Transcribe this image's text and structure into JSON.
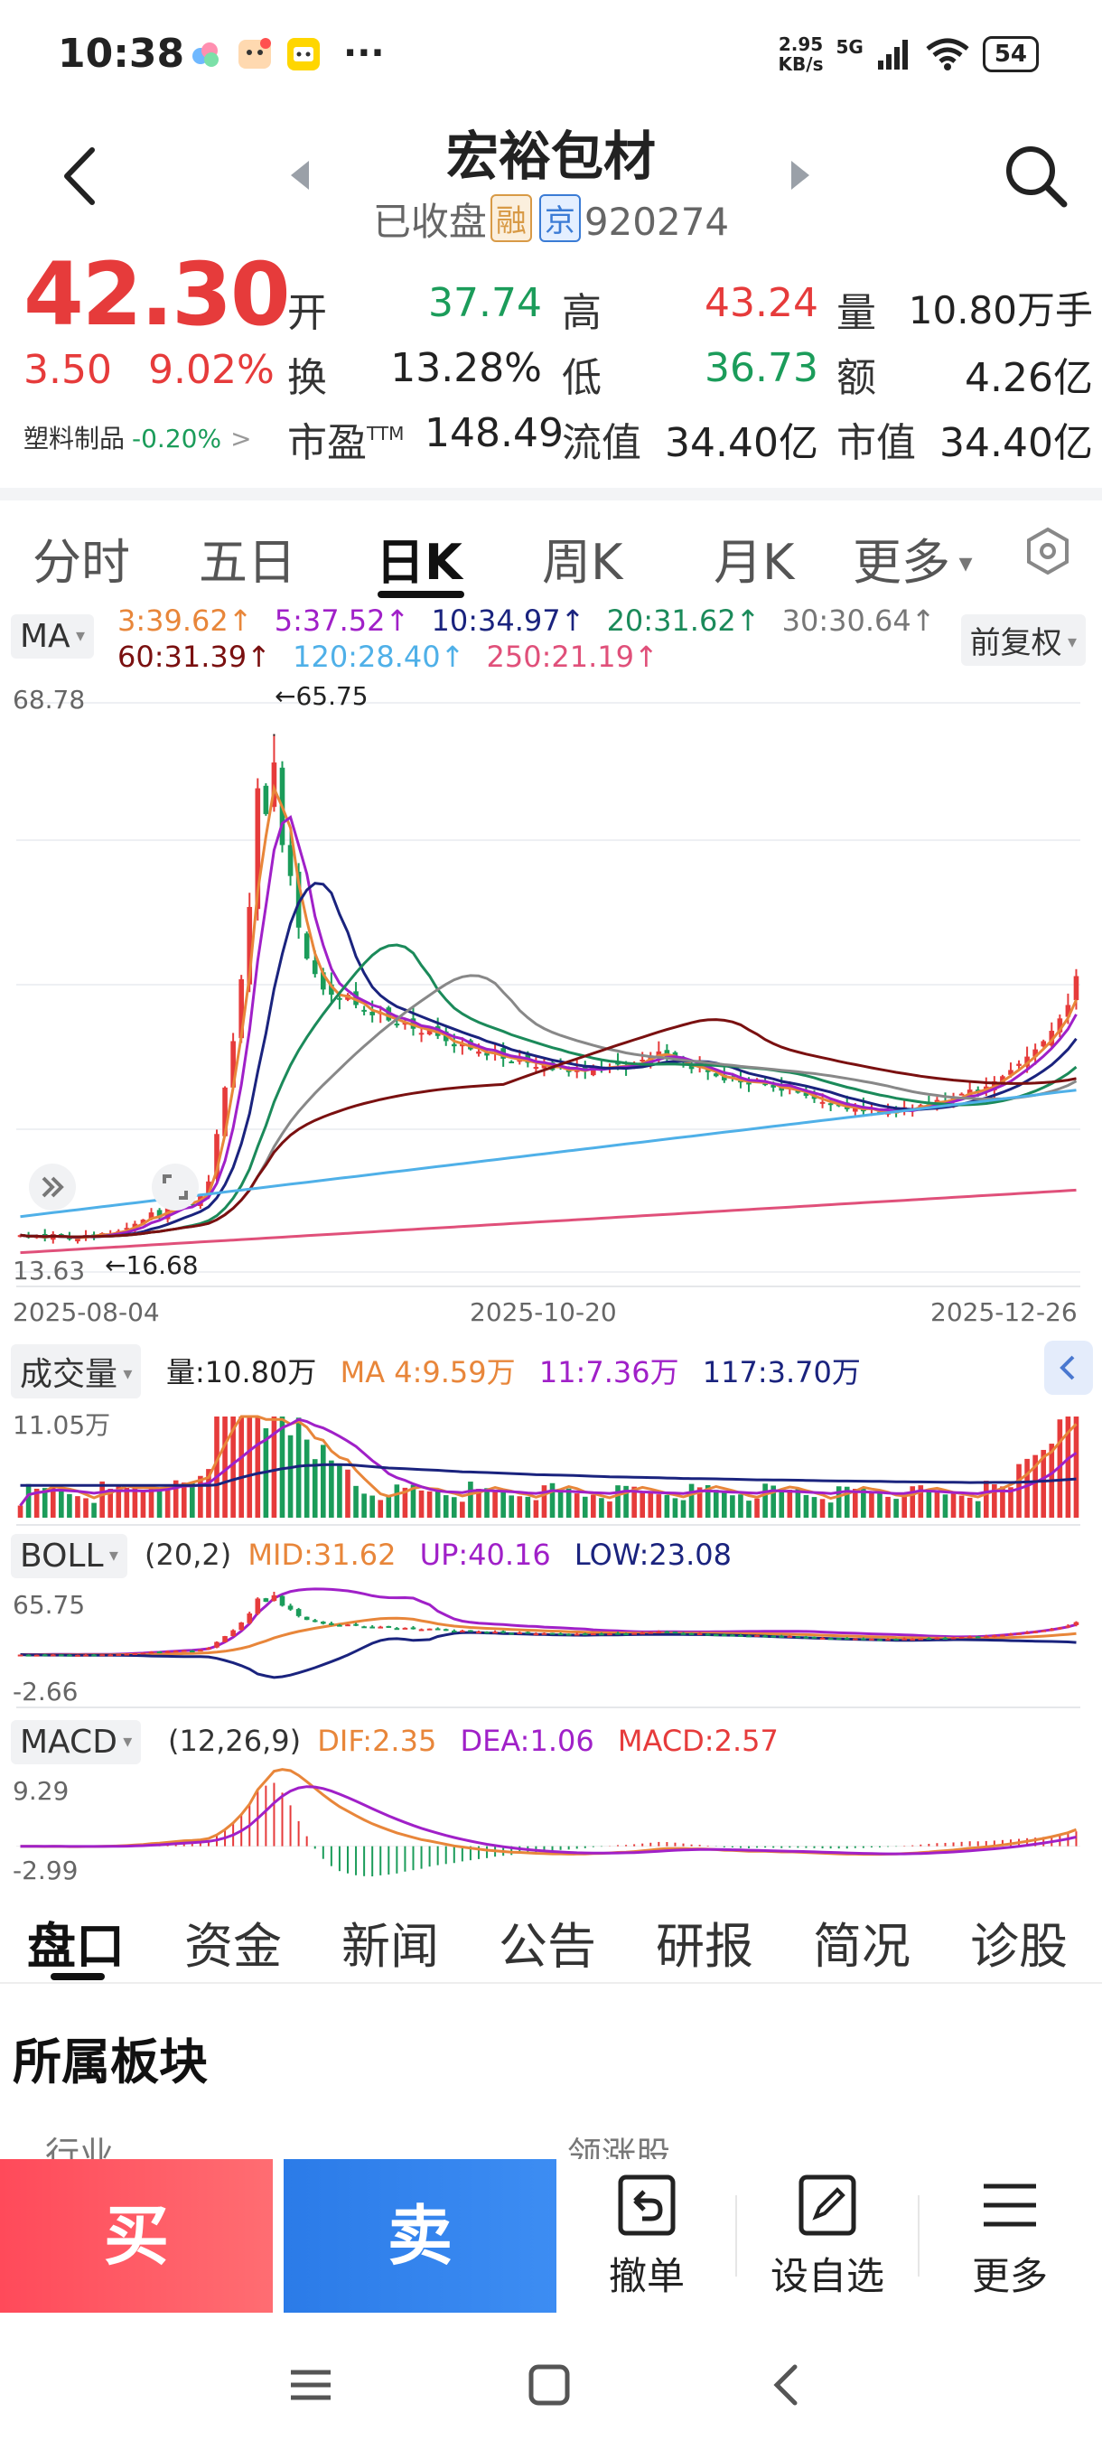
{
  "status_bar": {
    "time": "10:38",
    "more": "···",
    "speed_value": "2.95",
    "speed_unit": "KB/s",
    "network": "5G",
    "battery": "54",
    "app_icons": [
      "cloud-app-icon",
      "cartoon-app-icon",
      "yellow-app-icon"
    ]
  },
  "header": {
    "title": "宏裕包材",
    "status": "已收盘",
    "tag_rong": "融",
    "tag_jing": "京",
    "code": "920274"
  },
  "quote": {
    "price": "42.30",
    "change": "3.50",
    "change_pct": "9.02%",
    "sector_name": "塑料制品",
    "sector_pct": "-0.20%",
    "open_label": "开",
    "open": "37.74",
    "high_label": "高",
    "high": "43.24",
    "volume_label": "量",
    "volume": "10.80万手",
    "turnover_label": "换",
    "turnover": "13.28%",
    "low_label": "低",
    "low": "36.73",
    "amount_label": "额",
    "amount": "4.26亿",
    "pe_label": "市盈",
    "pe_sup": "TTM",
    "pe": "148.49",
    "float_label": "流值",
    "float_cap": "34.40亿",
    "mcap_label": "市值",
    "mcap": "34.40亿"
  },
  "chart_tabs": [
    "分时",
    "五日",
    "日K",
    "周K",
    "月K",
    "更多"
  ],
  "active_chart_tab": "日K",
  "ma_legend": {
    "chip": "MA",
    "items": [
      {
        "label": "3:39.62",
        "color": "#e8863a"
      },
      {
        "label": "5:37.52",
        "color": "#a020c8"
      },
      {
        "label": "10:34.97",
        "color": "#1a237e"
      },
      {
        "label": "20:31.62",
        "color": "#1b8a5a"
      },
      {
        "label": "30:30.64",
        "color": "#777777"
      },
      {
        "label": "60:31.39",
        "color": "#7a1010"
      },
      {
        "label": "120:28.40",
        "color": "#4fb0e8"
      },
      {
        "label": "250:21.19",
        "color": "#e0507a"
      }
    ],
    "adjust": "前复权"
  },
  "kline": {
    "y_max_label": "68.78",
    "y_min_label": "13.63",
    "high_marker": "←65.75",
    "low_marker": "←16.68",
    "dates": [
      "2025-08-04",
      "2025-10-20",
      "2025-12-26"
    ]
  },
  "volume_panel": {
    "chip": "成交量",
    "vol": "量:10.80万",
    "ma_prefix": "MA",
    "ma4": "4:9.59万",
    "ma11": "11:7.36万",
    "ma117": "117:3.70万",
    "y_max": "11.05万"
  },
  "boll_panel": {
    "chip": "BOLL",
    "params": "(20,2)",
    "mid": "MID:31.62",
    "up": "UP:40.16",
    "low": "LOW:23.08",
    "y_max": "65.75",
    "y_min": "-2.66"
  },
  "macd_panel": {
    "chip": "MACD",
    "params": "(12,26,9)",
    "dif": "DIF:2.35",
    "dea": "DEA:1.06",
    "macd": "MACD:2.57",
    "y_max": "9.29",
    "y_min": "-2.99"
  },
  "chart_data": {
    "type": "candlestick",
    "x_range": [
      "2025-08-04",
      "2025-12-26"
    ],
    "ylim": [
      13.63,
      68.78
    ],
    "price_high": 65.75,
    "price_low": 16.68,
    "close_series": [
      17.2,
      17.0,
      17.1,
      16.9,
      17.3,
      17.0,
      16.8,
      17.0,
      17.2,
      17.1,
      17.4,
      17.3,
      17.6,
      17.9,
      18.3,
      18.7,
      19.4,
      18.9,
      19.8,
      20.2,
      20.6,
      20.1,
      21.0,
      22.4,
      27.0,
      31.5,
      36.0,
      42.0,
      49.0,
      60.5,
      58.0,
      63.0,
      55.0,
      52.0,
      47.0,
      44.0,
      42.5,
      41.0,
      40.5,
      40.0,
      40.5,
      39.5,
      39.0,
      38.5,
      38.8,
      38.0,
      37.6,
      37.9,
      37.2,
      36.8,
      37.3,
      36.5,
      36.0,
      35.5,
      35.8,
      35.2,
      35.0,
      34.6,
      34.9,
      34.3,
      34.0,
      34.4,
      33.9,
      33.5,
      33.8,
      33.2,
      33.5,
      33.0,
      33.3,
      33.1,
      33.6,
      33.2,
      33.5,
      33.8,
      33.4,
      33.9,
      34.2,
      34.6,
      35.0,
      34.5,
      34.1,
      33.7,
      33.3,
      33.6,
      33.0,
      32.6,
      32.2,
      32.5,
      32.0,
      31.8,
      32.3,
      31.9,
      31.5,
      31.2,
      31.6,
      31.0,
      30.7,
      30.4,
      30.1,
      29.9,
      29.7,
      29.4,
      29.7,
      29.2,
      29.5,
      29.0,
      29.3,
      29.0,
      29.6,
      29.4,
      29.8,
      30.0,
      30.3,
      30.1,
      30.5,
      30.9,
      31.3,
      31.0,
      31.6,
      32.1,
      32.6,
      33.2,
      33.8,
      34.5,
      35.2,
      36.0,
      37.0,
      38.2,
      39.5,
      42.3
    ],
    "volume_scale_max": "11.05万",
    "macd_range": [
      -2.99,
      9.29
    ]
  },
  "bottom_tabs": [
    "盘口",
    "资金",
    "新闻",
    "公告",
    "研报",
    "简况",
    "诊股"
  ],
  "active_bottom_tab": "盘口",
  "section": {
    "title": "所属板块",
    "faded_left": "行业",
    "faded_right": "领涨股"
  },
  "actions": {
    "buy": "买",
    "sell": "卖",
    "cancel": "撤单",
    "watchlist": "设自选",
    "more": "更多"
  }
}
